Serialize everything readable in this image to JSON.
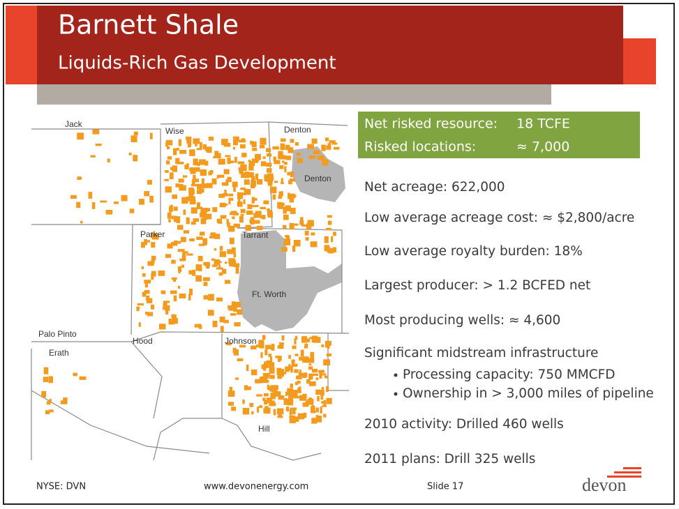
{
  "header": {
    "title": "Barnett Shale",
    "subtitle": "Liquids-Rich Gas Development"
  },
  "map": {
    "labels": [
      "Jack",
      "Wise",
      "Denton",
      "Denton",
      "Parker",
      "Tarrant",
      "Ft. Worth",
      "Palo Pinto",
      "Erath",
      "Hood",
      "Johnson",
      "Hill"
    ]
  },
  "highlight": {
    "rows": [
      [
        "Net risked resource:",
        "18 TCFE"
      ],
      [
        "Risked locations:",
        "≈ 7,000"
      ]
    ]
  },
  "facts": [
    "Net acreage: 622,000",
    "Low average acreage cost: ≈ $2,800/acre",
    "Low average royalty burden: 18%",
    "Largest producer: > 1.2 BCFED net",
    "Most producing wells: ≈ 4,600",
    "Significant midstream infrastructure"
  ],
  "sub_facts": [
    "Processing capacity: 750 MMCFD",
    "Ownership in > 3,000 miles of pipeline"
  ],
  "plans": [
    "2010 activity: Drilled 460 wells",
    "2011 plans: Drill 325 wells"
  ],
  "footer": {
    "ticker": "NYSE: DVN",
    "url": "www.devonenergy.com",
    "slide": "Slide 17",
    "logo": "devon"
  }
}
